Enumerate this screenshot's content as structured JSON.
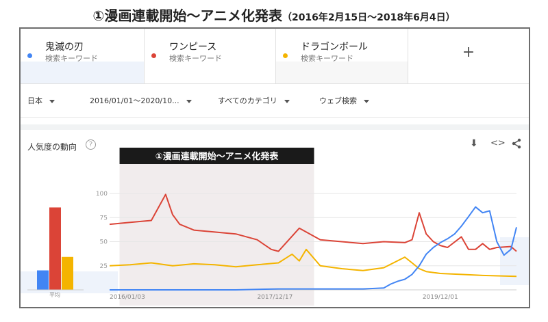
{
  "page_title": {
    "main": "①漫画連載開始〜アニメ化発表",
    "sub": "（2016年2月15日〜2018年6月4日）"
  },
  "terms": [
    {
      "name": "鬼滅の刃",
      "sub": "検索キーワード",
      "color": "#4285f4"
    },
    {
      "name": "ワンピース",
      "sub": "検索キーワード",
      "color": "#db4437"
    },
    {
      "name": "ドラゴンボール",
      "sub": "検索キーワード",
      "color": "#f4b400"
    }
  ],
  "add_icon": "+",
  "filters": {
    "region": "日本",
    "period": "2016/01/01〜2020/10...",
    "category": "すべてのカテゴリ",
    "search_type": "ウェブ検索"
  },
  "interest": {
    "title": "人気度の動向",
    "help": "?",
    "download": "⬇",
    "embed": "<>",
    "share": "share-icon"
  },
  "highlight_label": "①漫画連載開始〜アニメ化発表",
  "chart_data": [
    {
      "type": "bar",
      "categories": [
        "平均"
      ],
      "series": [
        {
          "name": "鬼滅の刃",
          "values": [
            13
          ]
        },
        {
          "name": "ワンピース",
          "values": [
            55
          ]
        },
        {
          "name": "ドラゴンボール",
          "values": [
            22
          ]
        }
      ],
      "ylim": [
        0,
        100
      ]
    },
    {
      "type": "line",
      "x_tick_labels": [
        "2016/01/03",
        "2017/12/17",
        "2019/12/01"
      ],
      "x_ticks": [
        "2016-01-03",
        "2017-12-17",
        "2019-12-01"
      ],
      "xlim": [
        "2016-01-03",
        "2020-10-25"
      ],
      "y_tick_labels": [
        "100",
        "75",
        "50",
        "25"
      ],
      "ylim": [
        0,
        100
      ],
      "highlight": {
        "label": "①漫画連載開始〜アニメ化発表",
        "start": "2016-02-15",
        "end": "2018-06-04"
      },
      "series": [
        {
          "name": "鬼滅の刃",
          "color": "#4285f4",
          "x": [
            "2016-01-03",
            "2016-07-01",
            "2017-01-01",
            "2017-07-01",
            "2018-01-01",
            "2018-04-01",
            "2018-07-01",
            "2018-10-01",
            "2019-01-01",
            "2019-04-01",
            "2019-05-01",
            "2019-06-01",
            "2019-07-01",
            "2019-08-01",
            "2019-09-01",
            "2019-10-01",
            "2019-11-01",
            "2019-12-01",
            "2020-01-01",
            "2020-02-01",
            "2020-03-01",
            "2020-04-01",
            "2020-05-01",
            "2020-06-01",
            "2020-07-01",
            "2020-08-01",
            "2020-09-01",
            "2020-10-01",
            "2020-10-25"
          ],
          "y": [
            0,
            0,
            0,
            0,
            1,
            1,
            1,
            1,
            1,
            2,
            6,
            9,
            11,
            16,
            25,
            37,
            44,
            49,
            53,
            58,
            66,
            76,
            86,
            80,
            82,
            50,
            36,
            42,
            65
          ]
        },
        {
          "name": "ワンピース",
          "color": "#db4437",
          "x": [
            "2016-01-03",
            "2016-04-01",
            "2016-07-01",
            "2016-09-01",
            "2016-10-01",
            "2016-11-01",
            "2017-01-01",
            "2017-04-01",
            "2017-07-01",
            "2017-10-01",
            "2017-12-01",
            "2018-01-01",
            "2018-04-01",
            "2018-07-01",
            "2018-10-01",
            "2019-01-01",
            "2019-04-01",
            "2019-07-01",
            "2019-08-01",
            "2019-09-01",
            "2019-10-01",
            "2019-11-01",
            "2019-12-01",
            "2020-01-01",
            "2020-03-01",
            "2020-04-01",
            "2020-05-01",
            "2020-06-01",
            "2020-07-01",
            "2020-08-01",
            "2020-10-01",
            "2020-10-25"
          ],
          "y": [
            68,
            70,
            72,
            99,
            78,
            68,
            62,
            60,
            58,
            52,
            42,
            40,
            64,
            52,
            50,
            48,
            50,
            49,
            52,
            80,
            58,
            50,
            46,
            44,
            55,
            42,
            42,
            48,
            42,
            44,
            45,
            40
          ]
        },
        {
          "name": "ドラゴンボール",
          "color": "#f4b400",
          "x": [
            "2016-01-03",
            "2016-04-01",
            "2016-07-01",
            "2016-10-01",
            "2017-01-01",
            "2017-04-01",
            "2017-07-01",
            "2017-10-01",
            "2018-01-01",
            "2018-03-01",
            "2018-04-01",
            "2018-05-01",
            "2018-07-01",
            "2018-10-01",
            "2019-01-01",
            "2019-04-01",
            "2019-07-01",
            "2019-08-01",
            "2019-09-01",
            "2019-10-01",
            "2019-12-01",
            "2020-03-01",
            "2020-06-01",
            "2020-10-25"
          ],
          "y": [
            25,
            26,
            28,
            25,
            27,
            26,
            24,
            26,
            28,
            37,
            30,
            42,
            25,
            22,
            20,
            23,
            34,
            28,
            22,
            19,
            17,
            16,
            15,
            14
          ]
        }
      ]
    }
  ]
}
